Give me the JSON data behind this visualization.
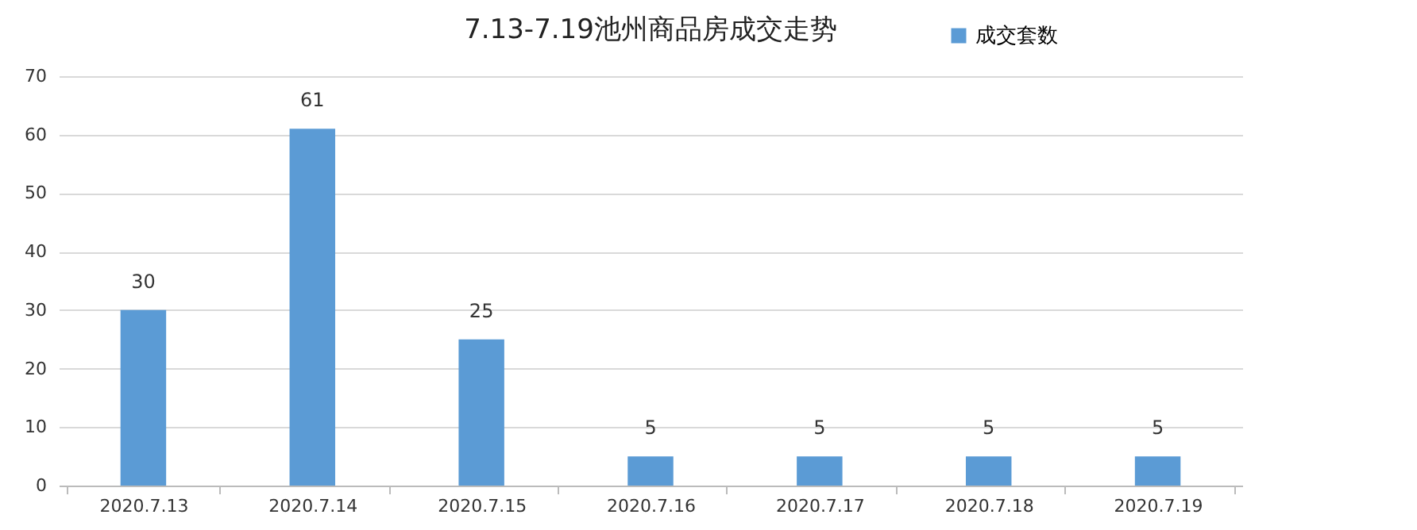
{
  "chart_data": {
    "type": "bar",
    "title": "7.13-7.19池州商品房成交走势",
    "categories": [
      "2020.7.13",
      "2020.7.14",
      "2020.7.15",
      "2020.7.16",
      "2020.7.17",
      "2020.7.18",
      "2020.7.19"
    ],
    "series": [
      {
        "name": "成交套数",
        "color": "#5b9bd5",
        "values": [
          30,
          61,
          25,
          5,
          5,
          5,
          5
        ]
      }
    ],
    "ylim": [
      0,
      70
    ],
    "yticks": [
      0,
      10,
      20,
      30,
      40,
      50,
      60,
      70
    ],
    "grid": "y",
    "legend": "top right",
    "data_labels": true
  }
}
